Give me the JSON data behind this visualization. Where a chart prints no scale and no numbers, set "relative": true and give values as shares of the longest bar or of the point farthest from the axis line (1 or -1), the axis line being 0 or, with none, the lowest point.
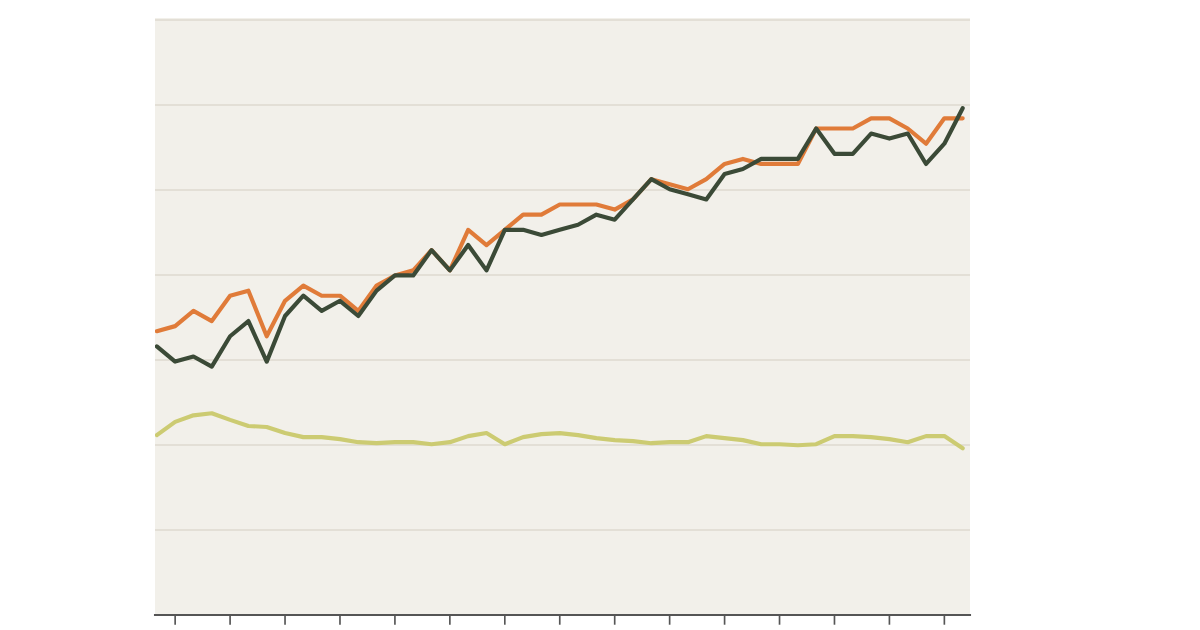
{
  "chart_data": {
    "type": "line",
    "relative": true,
    "grid": "y",
    "line_style": "solid",
    "categories": [
      null,
      null,
      null,
      null,
      null,
      null,
      null,
      null,
      null,
      null,
      null,
      null,
      null,
      null,
      null,
      null,
      null,
      null,
      null,
      null,
      null,
      null,
      null,
      null,
      null,
      null,
      null,
      null,
      null,
      null,
      null,
      null,
      null,
      null,
      null,
      null,
      null,
      null,
      null,
      null,
      null,
      null,
      null,
      null,
      null
    ],
    "series": [
      {
        "color": "#e07b39",
        "values": [
          0.56,
          0.57,
          0.6,
          0.58,
          0.63,
          0.64,
          0.55,
          0.62,
          0.65,
          0.63,
          0.63,
          0.6,
          0.65,
          0.67,
          0.68,
          0.72,
          0.68,
          0.76,
          0.73,
          0.76,
          0.79,
          0.79,
          0.81,
          0.81,
          0.81,
          0.8,
          0.82,
          0.86,
          0.85,
          0.84,
          0.86,
          0.89,
          0.9,
          0.89,
          0.89,
          0.89,
          0.96,
          0.96,
          0.96,
          0.98,
          0.98,
          0.96,
          0.93,
          0.98,
          0.98
        ]
      },
      {
        "color": "#3b4a37",
        "values": [
          0.53,
          0.5,
          0.51,
          0.49,
          0.55,
          0.58,
          0.5,
          0.59,
          0.63,
          0.6,
          0.62,
          0.59,
          0.64,
          0.67,
          0.67,
          0.72,
          0.68,
          0.73,
          0.68,
          0.76,
          0.76,
          0.75,
          0.76,
          0.77,
          0.79,
          0.78,
          0.82,
          0.86,
          0.84,
          0.83,
          0.82,
          0.87,
          0.88,
          0.9,
          0.9,
          0.9,
          0.96,
          0.91,
          0.91,
          0.95,
          0.94,
          0.95,
          0.89,
          0.93,
          1
        ]
      },
      {
        "color": "#cccb72",
        "values": [
          0.355,
          0.381,
          0.394,
          0.398,
          0.385,
          0.373,
          0.371,
          0.359,
          0.351,
          0.351,
          0.347,
          0.341,
          0.339,
          0.341,
          0.341,
          0.337,
          0.341,
          0.353,
          0.359,
          0.337,
          0.351,
          0.357,
          0.359,
          0.355,
          0.349,
          0.345,
          0.343,
          0.339,
          0.341,
          0.341,
          0.353,
          0.349,
          0.345,
          0.337,
          0.337,
          0.335,
          0.337,
          0.353,
          0.353,
          0.351,
          0.347,
          0.341,
          0.353,
          0.353,
          0.329
        ]
      }
    ]
  }
}
